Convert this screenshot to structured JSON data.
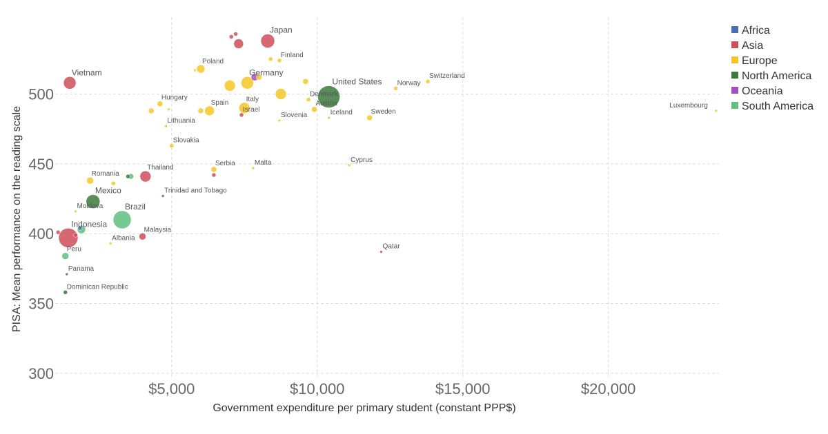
{
  "chart_data": {
    "type": "scatter",
    "title": "",
    "xlabel": "Government expenditure per primary student (constant PPP$)",
    "ylabel": "PISA: Mean performance on the reading scale",
    "xlim": [
      1000,
      23800
    ],
    "ylim": [
      297,
      555
    ],
    "xticks": [
      5000,
      10000,
      15000,
      20000
    ],
    "xtick_labels": [
      "$5,000",
      "$10,000",
      "$15,000",
      "$20,000"
    ],
    "yticks": [
      300,
      350,
      400,
      450,
      500
    ],
    "ytick_labels": [
      "300",
      "350",
      "400",
      "450",
      "500"
    ],
    "grid": true,
    "legend_position": "top-right",
    "legend": [
      {
        "name": "Africa",
        "color": "#4C6EB5"
      },
      {
        "name": "Asia",
        "color": "#CE4D5A"
      },
      {
        "name": "Europe",
        "color": "#F5C726"
      },
      {
        "name": "North America",
        "color": "#3C7A3C"
      },
      {
        "name": "Oceania",
        "color": "#A04FC0"
      },
      {
        "name": "South America",
        "color": "#5FC080"
      }
    ],
    "points": [
      {
        "label": "Japan",
        "x": 8300,
        "y": 538,
        "region": "Asia",
        "r": 10
      },
      {
        "label": "",
        "x": 7300,
        "y": 536,
        "region": "Asia",
        "r": 7
      },
      {
        "label": "",
        "x": 7200,
        "y": 543,
        "region": "Asia",
        "r": 3
      },
      {
        "label": "",
        "x": 7050,
        "y": 541,
        "region": "Asia",
        "r": 3
      },
      {
        "label": "Vietnam",
        "x": 1500,
        "y": 508,
        "region": "Asia",
        "r": 9
      },
      {
        "label": "Poland",
        "x": 6000,
        "y": 518,
        "region": "Europe",
        "r": 6
      },
      {
        "label": "",
        "x": 5800,
        "y": 517,
        "region": "Europe",
        "r": 2
      },
      {
        "label": "Finland",
        "x": 8700,
        "y": 524,
        "region": "Europe",
        "r": 3
      },
      {
        "label": "",
        "x": 8400,
        "y": 525,
        "region": "Europe",
        "r": 3
      },
      {
        "label": "Germany",
        "x": 7600,
        "y": 508,
        "region": "Europe",
        "r": 9
      },
      {
        "label": "",
        "x": 7850,
        "y": 512,
        "region": "Oceania",
        "r": 5
      },
      {
        "label": "",
        "x": 8000,
        "y": 512,
        "region": "Europe",
        "r": 4
      },
      {
        "label": "",
        "x": 7000,
        "y": 506,
        "region": "Europe",
        "r": 8
      },
      {
        "label": "",
        "x": 8750,
        "y": 500,
        "region": "Europe",
        "r": 8
      },
      {
        "label": "",
        "x": 9600,
        "y": 509,
        "region": "Europe",
        "r": 4
      },
      {
        "label": "United States",
        "x": 10400,
        "y": 498,
        "region": "North America",
        "r": 16
      },
      {
        "label": "Denmark",
        "x": 9700,
        "y": 496,
        "region": "Europe",
        "r": 3
      },
      {
        "label": "Austria",
        "x": 9900,
        "y": 489,
        "region": "Europe",
        "r": 4
      },
      {
        "label": "Norway",
        "x": 12700,
        "y": 504,
        "region": "Europe",
        "r": 3
      },
      {
        "label": "Switzerland",
        "x": 13800,
        "y": 509,
        "region": "Europe",
        "r": 3
      },
      {
        "label": "Luxembourg",
        "x": 23700,
        "y": 488,
        "region": "Europe",
        "r": 2
      },
      {
        "label": "Hungary",
        "x": 4600,
        "y": 493,
        "region": "Europe",
        "r": 4
      },
      {
        "label": "",
        "x": 4300,
        "y": 488,
        "region": "Europe",
        "r": 4
      },
      {
        "label": "",
        "x": 4900,
        "y": 489,
        "region": "Europe",
        "r": 2
      },
      {
        "label": "Spain",
        "x": 6300,
        "y": 488,
        "region": "Europe",
        "r": 7
      },
      {
        "label": "",
        "x": 6000,
        "y": 488,
        "region": "Europe",
        "r": 4
      },
      {
        "label": "Italy",
        "x": 7500,
        "y": 490,
        "region": "Europe",
        "r": 8
      },
      {
        "label": "Israel",
        "x": 7400,
        "y": 485,
        "region": "Asia",
        "r": 3
      },
      {
        "label": "Slovenia",
        "x": 8700,
        "y": 481,
        "region": "Europe",
        "r": 2
      },
      {
        "label": "Iceland",
        "x": 10400,
        "y": 483,
        "region": "Europe",
        "r": 2
      },
      {
        "label": "Sweden",
        "x": 11800,
        "y": 483,
        "region": "Europe",
        "r": 4
      },
      {
        "label": "Lithuania",
        "x": 4800,
        "y": 477,
        "region": "Europe",
        "r": 2
      },
      {
        "label": "Slovakia",
        "x": 5000,
        "y": 463,
        "region": "Europe",
        "r": 3
      },
      {
        "label": "Serbia",
        "x": 6450,
        "y": 446,
        "region": "Europe",
        "r": 4
      },
      {
        "label": "",
        "x": 6450,
        "y": 442,
        "region": "Asia",
        "r": 3
      },
      {
        "label": "Malta",
        "x": 7800,
        "y": 447,
        "region": "Europe",
        "r": 2
      },
      {
        "label": "Cyprus",
        "x": 11100,
        "y": 449,
        "region": "Europe",
        "r": 2
      },
      {
        "label": "Thailand",
        "x": 4100,
        "y": 441,
        "region": "Asia",
        "r": 8
      },
      {
        "label": "",
        "x": 3600,
        "y": 441,
        "region": "South America",
        "r": 4
      },
      {
        "label": "",
        "x": 3500,
        "y": 441,
        "region": "North America",
        "r": 3
      },
      {
        "label": "Romania",
        "x": 2200,
        "y": 438,
        "region": "Europe",
        "r": 5
      },
      {
        "label": "",
        "x": 3000,
        "y": 436,
        "region": "Europe",
        "r": 3
      },
      {
        "label": "Trinidad and Tobago",
        "x": 4700,
        "y": 427,
        "region": "North America",
        "r": 2
      },
      {
        "label": "Mexico",
        "x": 2300,
        "y": 423,
        "region": "North America",
        "r": 10
      },
      {
        "label": "Moldova",
        "x": 1700,
        "y": 416,
        "region": "Europe",
        "r": 2
      },
      {
        "label": "Brazil",
        "x": 3300,
        "y": 410,
        "region": "South America",
        "r": 13
      },
      {
        "label": "Indonesia",
        "x": 1450,
        "y": 397,
        "region": "Asia",
        "r": 14
      },
      {
        "label": "",
        "x": 1900,
        "y": 403,
        "region": "South America",
        "r": 6
      },
      {
        "label": "",
        "x": 1850,
        "y": 404,
        "region": "Africa",
        "r": 3
      },
      {
        "label": "",
        "x": 1100,
        "y": 401,
        "region": "Asia",
        "r": 3
      },
      {
        "label": "",
        "x": 1700,
        "y": 399,
        "region": "Asia",
        "r": 3
      },
      {
        "label": "Malaysia",
        "x": 4000,
        "y": 398,
        "region": "Asia",
        "r": 5
      },
      {
        "label": "Albania",
        "x": 2900,
        "y": 393,
        "region": "Europe",
        "r": 2
      },
      {
        "label": "Peru",
        "x": 1350,
        "y": 384,
        "region": "South America",
        "r": 5
      },
      {
        "label": "Qatar",
        "x": 12200,
        "y": 387,
        "region": "Asia",
        "r": 2
      },
      {
        "label": "Panama",
        "x": 1400,
        "y": 371,
        "region": "North America",
        "r": 2
      },
      {
        "label": "Dominican Republic",
        "x": 1350,
        "y": 358,
        "region": "North America",
        "r": 3
      }
    ]
  }
}
